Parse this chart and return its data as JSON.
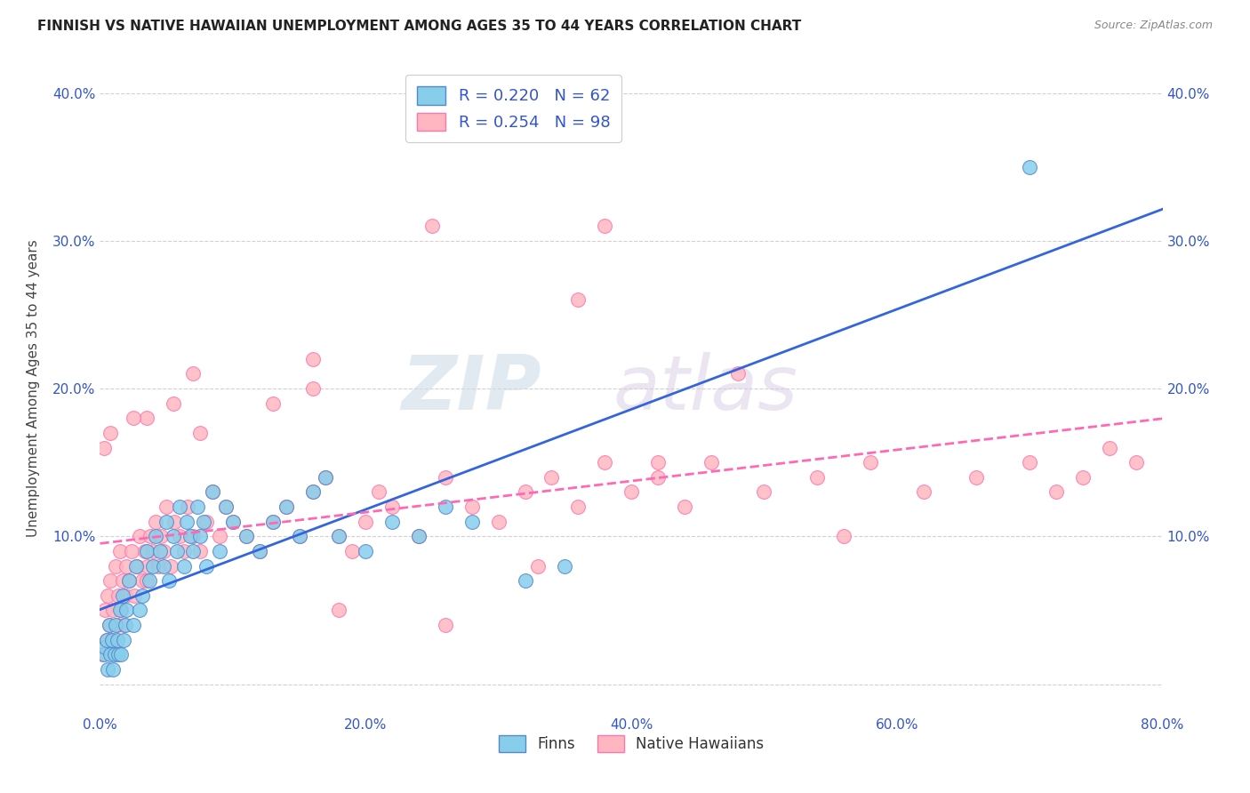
{
  "title": "FINNISH VS NATIVE HAWAIIAN UNEMPLOYMENT AMONG AGES 35 TO 44 YEARS CORRELATION CHART",
  "source": "Source: ZipAtlas.com",
  "ylabel": "Unemployment Among Ages 35 to 44 years",
  "xlim": [
    0.0,
    0.8
  ],
  "ylim": [
    -0.02,
    0.42
  ],
  "xticks": [
    0.0,
    0.2,
    0.4,
    0.6,
    0.8
  ],
  "yticks": [
    0.0,
    0.1,
    0.2,
    0.3,
    0.4
  ],
  "xticklabels": [
    "0.0%",
    "20.0%",
    "40.0%",
    "60.0%",
    "80.0%"
  ],
  "yticklabels": [
    "",
    "10.0%",
    "20.0%",
    "30.0%",
    "40.0%"
  ],
  "finn_color": "#87CEEB",
  "hawaii_color": "#FFB6C1",
  "finn_edge": "#5588CC",
  "hawaii_edge": "#FF77AA",
  "trend_finn_color": "#3366DD",
  "trend_hawaii_color": "#FF69B4",
  "legend_text_color": "#3355CC",
  "finn_R": 0.22,
  "finn_N": 62,
  "hawaii_R": 0.254,
  "hawaii_N": 98,
  "watermark_zip": "ZIP",
  "watermark_atlas": "atlas",
  "background_color": "#ffffff",
  "grid_color": "#cccccc",
  "finn_x": [
    0.003,
    0.004,
    0.005,
    0.006,
    0.007,
    0.008,
    0.009,
    0.01,
    0.011,
    0.012,
    0.013,
    0.014,
    0.015,
    0.016,
    0.017,
    0.018,
    0.019,
    0.02,
    0.022,
    0.025,
    0.027,
    0.03,
    0.032,
    0.035,
    0.037,
    0.04,
    0.042,
    0.045,
    0.048,
    0.05,
    0.052,
    0.055,
    0.058,
    0.06,
    0.063,
    0.065,
    0.068,
    0.07,
    0.073,
    0.075,
    0.078,
    0.08,
    0.085,
    0.09,
    0.095,
    0.1,
    0.11,
    0.12,
    0.13,
    0.14,
    0.15,
    0.16,
    0.17,
    0.18,
    0.2,
    0.22,
    0.24,
    0.26,
    0.28,
    0.32,
    0.35,
    0.7
  ],
  "finn_y": [
    0.02,
    0.025,
    0.03,
    0.01,
    0.04,
    0.02,
    0.03,
    0.01,
    0.02,
    0.04,
    0.03,
    0.02,
    0.05,
    0.02,
    0.06,
    0.03,
    0.04,
    0.05,
    0.07,
    0.04,
    0.08,
    0.05,
    0.06,
    0.09,
    0.07,
    0.08,
    0.1,
    0.09,
    0.08,
    0.11,
    0.07,
    0.1,
    0.09,
    0.12,
    0.08,
    0.11,
    0.1,
    0.09,
    0.12,
    0.1,
    0.11,
    0.08,
    0.13,
    0.09,
    0.12,
    0.11,
    0.1,
    0.09,
    0.11,
    0.12,
    0.1,
    0.13,
    0.14,
    0.1,
    0.09,
    0.11,
    0.1,
    0.12,
    0.11,
    0.07,
    0.08,
    0.35
  ],
  "hawaii_x": [
    0.002,
    0.004,
    0.005,
    0.006,
    0.007,
    0.008,
    0.009,
    0.01,
    0.012,
    0.013,
    0.014,
    0.015,
    0.016,
    0.017,
    0.018,
    0.019,
    0.02,
    0.022,
    0.024,
    0.026,
    0.028,
    0.03,
    0.032,
    0.034,
    0.036,
    0.038,
    0.04,
    0.042,
    0.044,
    0.046,
    0.048,
    0.05,
    0.053,
    0.056,
    0.06,
    0.063,
    0.066,
    0.07,
    0.075,
    0.08,
    0.085,
    0.09,
    0.095,
    0.1,
    0.11,
    0.12,
    0.13,
    0.14,
    0.15,
    0.16,
    0.17,
    0.18,
    0.19,
    0.2,
    0.21,
    0.22,
    0.24,
    0.26,
    0.28,
    0.3,
    0.32,
    0.34,
    0.36,
    0.38,
    0.4,
    0.42,
    0.44,
    0.46,
    0.5,
    0.54,
    0.58,
    0.62,
    0.66,
    0.7,
    0.72,
    0.74,
    0.76,
    0.78,
    0.003,
    0.008,
    0.035,
    0.055,
    0.075,
    0.16,
    0.38,
    0.16,
    0.56,
    0.36,
    0.25,
    0.42,
    0.07,
    0.13,
    0.18,
    0.33,
    0.035,
    0.26,
    0.48,
    0.025
  ],
  "hawaii_y": [
    0.02,
    0.05,
    0.03,
    0.06,
    0.04,
    0.07,
    0.03,
    0.05,
    0.08,
    0.04,
    0.06,
    0.09,
    0.05,
    0.07,
    0.04,
    0.06,
    0.08,
    0.07,
    0.09,
    0.06,
    0.08,
    0.1,
    0.07,
    0.09,
    0.08,
    0.1,
    0.09,
    0.11,
    0.08,
    0.1,
    0.09,
    0.12,
    0.08,
    0.11,
    0.1,
    0.09,
    0.12,
    0.1,
    0.09,
    0.11,
    0.13,
    0.1,
    0.12,
    0.11,
    0.1,
    0.09,
    0.11,
    0.12,
    0.1,
    0.13,
    0.14,
    0.1,
    0.09,
    0.11,
    0.13,
    0.12,
    0.1,
    0.14,
    0.12,
    0.11,
    0.13,
    0.14,
    0.12,
    0.15,
    0.13,
    0.14,
    0.12,
    0.15,
    0.13,
    0.14,
    0.15,
    0.13,
    0.14,
    0.15,
    0.13,
    0.14,
    0.16,
    0.15,
    0.16,
    0.17,
    0.18,
    0.19,
    0.17,
    0.22,
    0.31,
    0.2,
    0.1,
    0.26,
    0.31,
    0.15,
    0.21,
    0.19,
    0.05,
    0.08,
    0.07,
    0.04,
    0.21,
    0.18
  ]
}
